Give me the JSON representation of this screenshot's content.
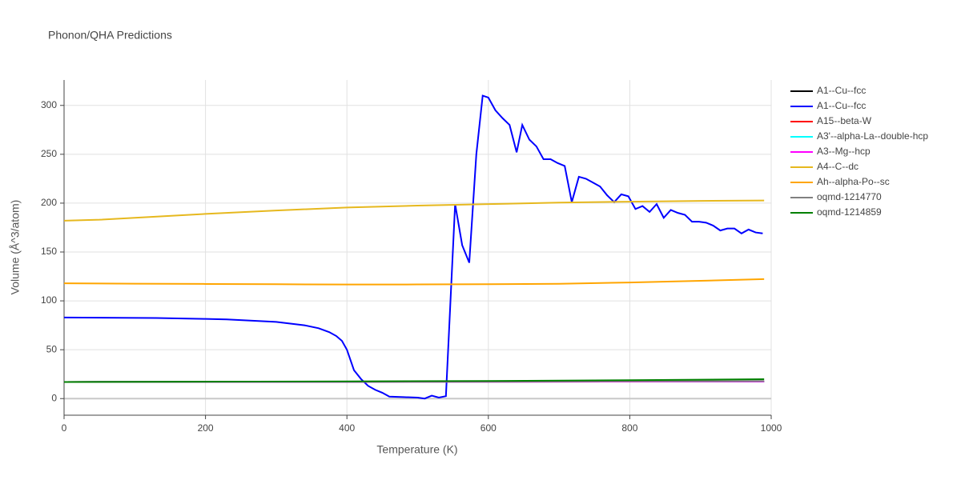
{
  "chart_data": {
    "type": "line",
    "title": "Phonon/QHA Predictions",
    "x_label": "Temperature (K)",
    "y_label": "Volume (Å^3/atom)",
    "xlim": [
      0,
      1000
    ],
    "ylim": [
      -17,
      326
    ],
    "xticks": [
      0,
      200,
      400,
      600,
      800,
      1000
    ],
    "yticks": [
      0,
      50,
      100,
      150,
      200,
      250,
      300
    ],
    "grid": true,
    "legend": "right",
    "series": [
      {
        "name": "A1--Cu--fcc",
        "color": "#000000",
        "x": [
          0,
          200,
          400,
          600,
          800,
          990
        ],
        "values": [
          17,
          17.1,
          17.2,
          17.3,
          17.4,
          17.5
        ]
      },
      {
        "name": "A1--Cu--fcc",
        "color": "#0000ff",
        "x": [
          0,
          130,
          200,
          230,
          300,
          340,
          360,
          375,
          385,
          393,
          400,
          410,
          420,
          430,
          440,
          450,
          460,
          480,
          500,
          510,
          520,
          530,
          540,
          553,
          563,
          573,
          583,
          592,
          600,
          610,
          620,
          630,
          640,
          648,
          658,
          668,
          678,
          688,
          698,
          708,
          718,
          728,
          738,
          748,
          758,
          768,
          778,
          788,
          798,
          808,
          818,
          828,
          838,
          848,
          858,
          868,
          878,
          888,
          898,
          908,
          918,
          928,
          938,
          948,
          958,
          968,
          978,
          988
        ],
        "values": [
          83,
          82.5,
          81.5,
          81,
          78.5,
          75,
          72,
          68,
          64,
          59,
          50,
          29,
          20,
          13,
          9,
          6,
          2,
          1.5,
          1,
          0,
          3,
          1,
          2.5,
          199,
          157,
          139,
          250,
          310,
          308,
          295,
          287,
          280,
          252,
          280,
          265,
          258,
          245,
          245,
          241,
          238,
          201,
          227,
          225,
          221,
          217,
          208,
          201,
          209,
          207,
          194,
          197,
          191,
          199,
          185,
          193,
          190,
          188,
          181,
          181,
          180,
          177,
          172,
          174,
          174,
          169,
          173,
          170,
          169
        ]
      },
      {
        "name": "A15--beta-W",
        "color": "#ff0000",
        "x": [
          0,
          200,
          400,
          600,
          800,
          990
        ],
        "values": [
          17,
          17.1,
          17.2,
          17.3,
          17.4,
          17.5
        ]
      },
      {
        "name": "A3'--alpha-La--double-hcp",
        "color": "#00ffff",
        "x": [
          0,
          200,
          400,
          600,
          800,
          990
        ],
        "values": [
          17,
          17.1,
          17.2,
          17.3,
          17.4,
          17.5
        ]
      },
      {
        "name": "A3--Mg--hcp",
        "color": "#ff00ff",
        "x": [
          0,
          200,
          400,
          600,
          800,
          990
        ],
        "values": [
          17,
          17.1,
          17.2,
          17.3,
          17.4,
          17.5
        ]
      },
      {
        "name": "A4--C--dc",
        "color": "#e6b81e",
        "x": [
          0,
          50,
          100,
          200,
          300,
          400,
          500,
          600,
          700,
          800,
          900,
          990
        ],
        "values": [
          182,
          183,
          185,
          189,
          192.5,
          195.5,
          197.5,
          199,
          200.5,
          201.5,
          202.3,
          202.7
        ]
      },
      {
        "name": "Ah--alpha-Po--sc",
        "color": "#ffa500",
        "x": [
          0,
          100,
          200,
          300,
          400,
          500,
          600,
          700,
          800,
          900,
          990
        ],
        "values": [
          118,
          117.6,
          117.3,
          117,
          116.7,
          116.8,
          117,
          117.5,
          118.8,
          120.5,
          122.3
        ]
      },
      {
        "name": "oqmd-1214770",
        "color": "#808080",
        "x": [
          0,
          200,
          400,
          600,
          800,
          990
        ],
        "values": [
          17,
          17.2,
          17.4,
          17.6,
          17.8,
          18
        ]
      },
      {
        "name": "oqmd-1214859",
        "color": "#008000",
        "x": [
          0,
          200,
          400,
          600,
          800,
          990
        ],
        "values": [
          17,
          17.3,
          17.6,
          18,
          18.8,
          19.8
        ]
      }
    ]
  }
}
